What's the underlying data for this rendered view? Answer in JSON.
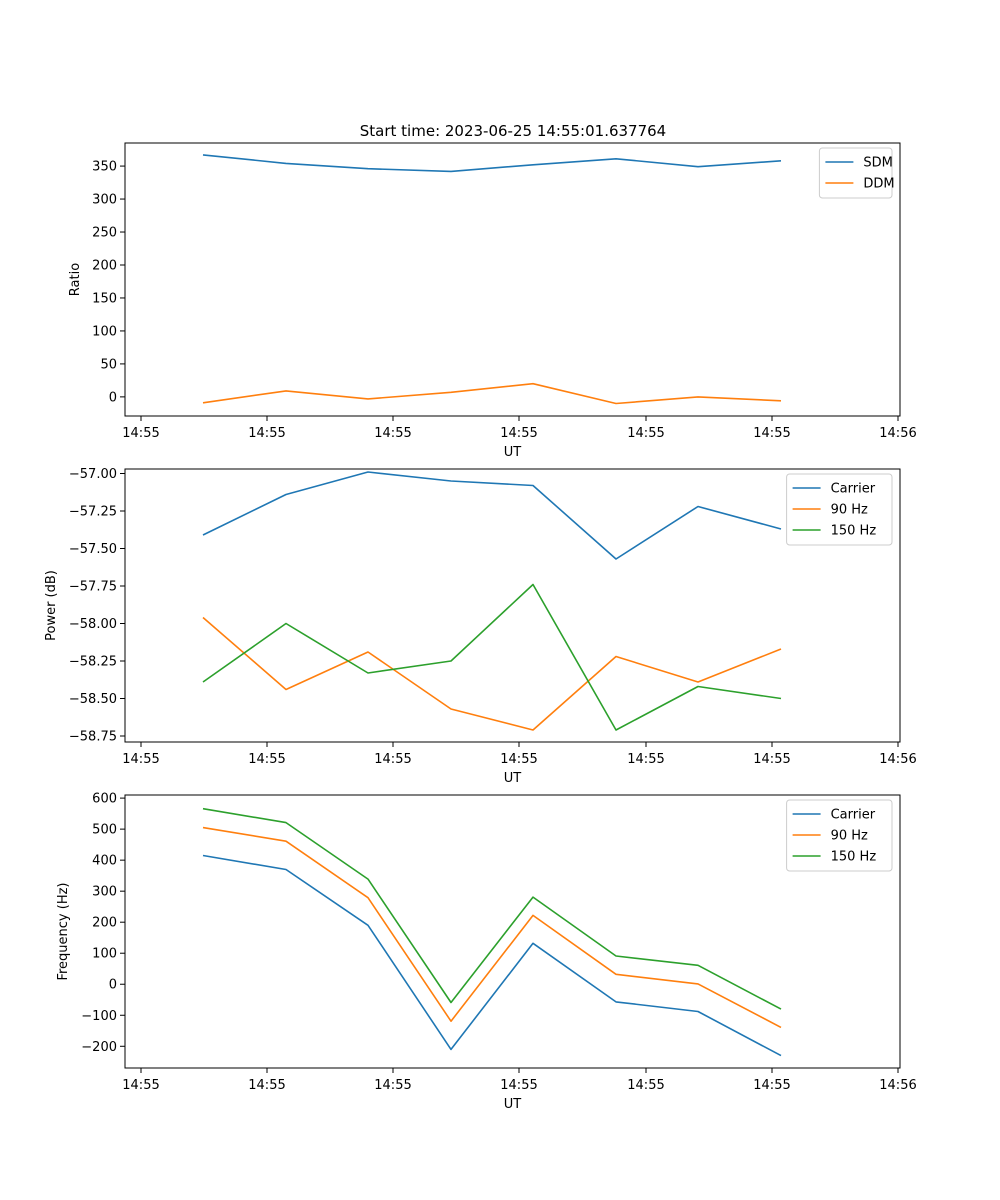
{
  "figure": {
    "title": "Start time: 2023-06-25 14:55:01.637764"
  },
  "chart_data": [
    {
      "type": "line",
      "xlabel": "UT",
      "ylabel": "Ratio",
      "x_tick_labels": [
        "14:55",
        "14:55",
        "14:55",
        "14:55",
        "14:55",
        "14:55",
        "14:56"
      ],
      "y_ticks": [
        0,
        50,
        100,
        150,
        200,
        250,
        300,
        350
      ],
      "ylim": [
        -29,
        385
      ],
      "legend": "top-right",
      "series": [
        {
          "name": "SDM",
          "color": "#1f77b4",
          "values": [
            367,
            354,
            346,
            342,
            352,
            361,
            349,
            358
          ]
        },
        {
          "name": "DDM",
          "color": "#ff7f0e",
          "values": [
            -9,
            9,
            -3,
            7,
            20,
            -10,
            0,
            -6
          ]
        }
      ]
    },
    {
      "type": "line",
      "xlabel": "UT",
      "ylabel": "Power (dB)",
      "x_tick_labels": [
        "14:55",
        "14:55",
        "14:55",
        "14:55",
        "14:55",
        "14:55",
        "14:56"
      ],
      "y_ticks": [
        "−57.00",
        "−57.25",
        "−57.50",
        "−57.75",
        "−58.00",
        "−58.25",
        "−58.50",
        "−58.75"
      ],
      "y_tick_values": [
        -57.0,
        -57.25,
        -57.5,
        -57.75,
        -58.0,
        -58.25,
        -58.5,
        -58.75
      ],
      "ylim": [
        -58.79,
        -56.97
      ],
      "legend": "top-right",
      "series": [
        {
          "name": "Carrier",
          "color": "#1f77b4",
          "values": [
            -57.41,
            -57.14,
            -56.99,
            -57.05,
            -57.08,
            -57.57,
            -57.22,
            -57.37
          ]
        },
        {
          "name": "90 Hz",
          "color": "#ff7f0e",
          "values": [
            -57.96,
            -58.44,
            -58.19,
            -58.57,
            -58.71,
            -58.22,
            -58.39,
            -58.17
          ]
        },
        {
          "name": "150 Hz",
          "color": "#2ca02c",
          "values": [
            -58.39,
            -58.0,
            -58.33,
            -58.25,
            -57.74,
            -58.71,
            -58.42,
            -58.5
          ]
        }
      ]
    },
    {
      "type": "line",
      "xlabel": "UT",
      "ylabel": "Frequency (Hz)",
      "x_tick_labels": [
        "14:55",
        "14:55",
        "14:55",
        "14:55",
        "14:55",
        "14:55",
        "14:56"
      ],
      "y_ticks": [
        "−200",
        "−100",
        "0",
        "100",
        "200",
        "300",
        "400",
        "500",
        "600"
      ],
      "y_tick_values": [
        -200,
        -100,
        0,
        100,
        200,
        300,
        400,
        500,
        600
      ],
      "ylim": [
        -270,
        610
      ],
      "legend": "top-right",
      "series": [
        {
          "name": "Carrier",
          "color": "#1f77b4",
          "values": [
            415,
            370,
            190,
            -210,
            132,
            -57,
            -88,
            -230
          ]
        },
        {
          "name": "90 Hz",
          "color": "#ff7f0e",
          "values": [
            505,
            461,
            279,
            -119,
            222,
            32,
            1,
            -139
          ]
        },
        {
          "name": "150 Hz",
          "color": "#2ca02c",
          "values": [
            566,
            521,
            339,
            -59,
            281,
            91,
            61,
            -80
          ]
        }
      ]
    }
  ]
}
